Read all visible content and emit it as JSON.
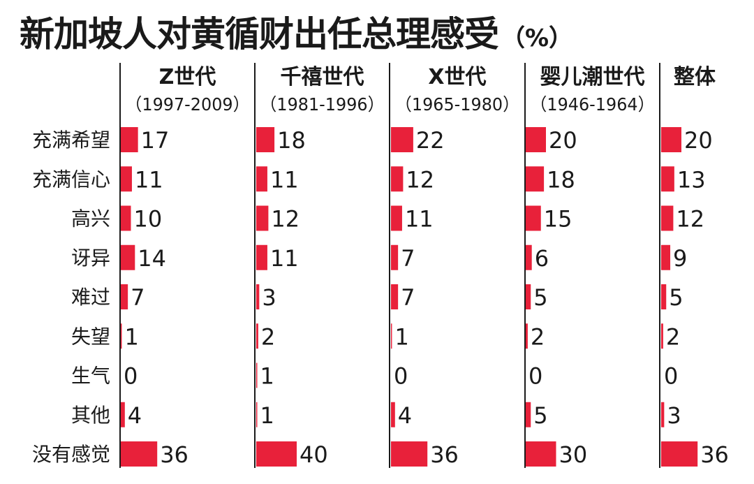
{
  "title": "新加坡人对黄循财出任总理感受",
  "title_unit": "（%）",
  "colors": {
    "bar": "#e8213a",
    "text": "#1a1a1a",
    "divider": "#1a1a1a",
    "background": "#ffffff"
  },
  "chart_data": {
    "type": "bar",
    "orientation": "horizontal",
    "unit": "%",
    "grid": false,
    "categories": [
      "充满希望",
      "充满信心",
      "高兴",
      "讶异",
      "难过",
      "失望",
      "生气",
      "其他",
      "没有感觉"
    ],
    "series": [
      {
        "name": "Z世代",
        "sub": "（1997-2009）",
        "values": [
          17,
          11,
          10,
          14,
          7,
          1,
          0,
          4,
          36
        ]
      },
      {
        "name": "千禧世代",
        "sub": "（1981-1996）",
        "values": [
          18,
          11,
          12,
          11,
          3,
          2,
          1,
          1,
          40
        ]
      },
      {
        "name": "X世代",
        "sub": "（1965-1980）",
        "values": [
          22,
          12,
          11,
          7,
          7,
          1,
          0,
          4,
          36
        ]
      },
      {
        "name": "婴儿潮世代",
        "sub": "（1946-1964）",
        "values": [
          20,
          18,
          15,
          6,
          5,
          2,
          0,
          5,
          30
        ]
      },
      {
        "name": "整体",
        "sub": "",
        "values": [
          20,
          13,
          12,
          9,
          5,
          2,
          0,
          3,
          36
        ]
      }
    ]
  }
}
